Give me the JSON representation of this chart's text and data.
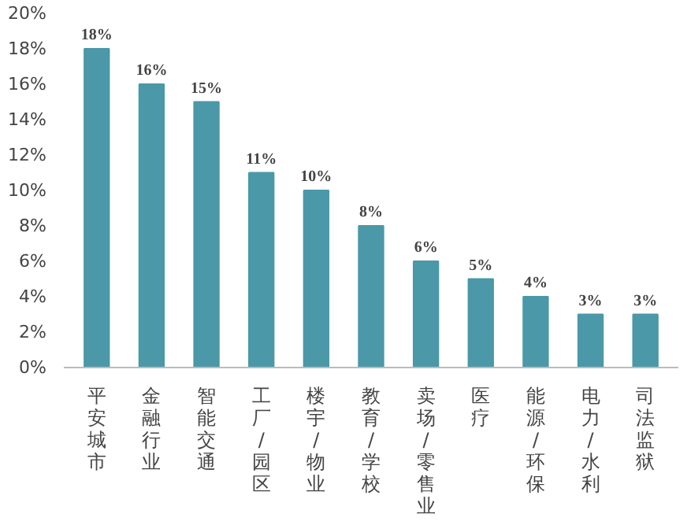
{
  "chart_data": {
    "type": "bar",
    "categories": [
      "平安城市",
      "金融行业",
      "智能交通",
      "工厂/园区",
      "楼宇/物业",
      "教育/学校",
      "卖场/零售业",
      "医疗",
      "能源/环保",
      "电力/水利",
      "司法监狱"
    ],
    "values": [
      18,
      16,
      15,
      11,
      10,
      8,
      6,
      5,
      4,
      3,
      3
    ],
    "value_labels": [
      "18%",
      "16%",
      "15%",
      "11%",
      "10%",
      "8%",
      "6%",
      "5%",
      "4%",
      "3%",
      "3%"
    ],
    "color": "#4a98a8",
    "ylim": [
      0,
      20
    ],
    "yticks": [
      {
        "value": 0,
        "label": "0%"
      },
      {
        "value": 2,
        "label": "2%"
      },
      {
        "value": 4,
        "label": "4%"
      },
      {
        "value": 6,
        "label": "6%"
      },
      {
        "value": 8,
        "label": "8%"
      },
      {
        "value": 10,
        "label": "10%"
      },
      {
        "value": 12,
        "label": "12%"
      },
      {
        "value": 14,
        "label": "14%"
      },
      {
        "value": 16,
        "label": "16%"
      },
      {
        "value": 18,
        "label": "18%"
      },
      {
        "value": 20,
        "label": "20%"
      }
    ],
    "grid": false
  }
}
